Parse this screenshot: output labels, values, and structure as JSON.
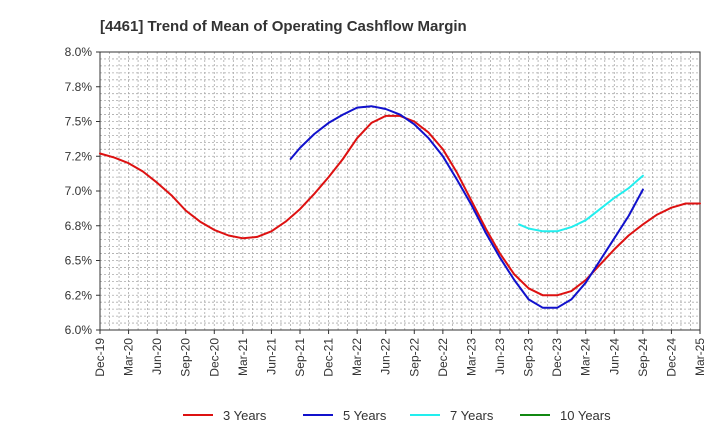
{
  "chart_data": {
    "type": "line",
    "title": "[4461]  Trend of Mean of Operating Cashflow Margin",
    "xlabel": "",
    "ylabel": "",
    "ylim": [
      6.0,
      8.0
    ],
    "yticks": [
      "8.0%",
      "7.8%",
      "7.5%",
      "7.2%",
      "7.0%",
      "6.8%",
      "6.5%",
      "6.2%",
      "6.0%"
    ],
    "ytick_values": [
      8.0,
      7.75,
      7.5,
      7.25,
      7.0,
      6.75,
      6.5,
      6.25,
      6.0
    ],
    "x_range_quarters": [
      0,
      21
    ],
    "xticks": [
      "Dec-19",
      "Mar-20",
      "Jun-20",
      "Sep-20",
      "Dec-20",
      "Mar-21",
      "Jun-21",
      "Sep-21",
      "Dec-21",
      "Mar-22",
      "Jun-22",
      "Sep-22",
      "Dec-22",
      "Mar-23",
      "Jun-23",
      "Sep-23",
      "Dec-23",
      "Mar-24",
      "Jun-24",
      "Sep-24",
      "Dec-24",
      "Mar-25"
    ],
    "grid": true,
    "legend_position": "bottom",
    "series": [
      {
        "name": "3 Years",
        "color": "#dd1111",
        "points": [
          [
            0,
            7.27
          ],
          [
            0.5,
            7.24
          ],
          [
            1,
            7.2
          ],
          [
            1.5,
            7.14
          ],
          [
            2,
            7.06
          ],
          [
            2.5,
            6.97
          ],
          [
            3,
            6.86
          ],
          [
            3.5,
            6.78
          ],
          [
            4,
            6.72
          ],
          [
            4.5,
            6.68
          ],
          [
            5,
            6.66
          ],
          [
            5.5,
            6.67
          ],
          [
            6,
            6.71
          ],
          [
            6.5,
            6.78
          ],
          [
            7,
            6.87
          ],
          [
            7.5,
            6.98
          ],
          [
            8,
            7.1
          ],
          [
            8.5,
            7.23
          ],
          [
            9,
            7.38
          ],
          [
            9.5,
            7.49
          ],
          [
            10,
            7.54
          ],
          [
            10.5,
            7.54
          ],
          [
            11,
            7.5
          ],
          [
            11.5,
            7.42
          ],
          [
            12,
            7.3
          ],
          [
            12.5,
            7.13
          ],
          [
            13,
            6.93
          ],
          [
            13.5,
            6.73
          ],
          [
            14,
            6.55
          ],
          [
            14.5,
            6.4
          ],
          [
            15,
            6.3
          ],
          [
            15.5,
            6.25
          ],
          [
            16,
            6.25
          ],
          [
            16.5,
            6.28
          ],
          [
            17,
            6.36
          ],
          [
            17.5,
            6.47
          ],
          [
            18,
            6.58
          ],
          [
            18.5,
            6.68
          ],
          [
            19,
            6.76
          ],
          [
            19.5,
            6.83
          ],
          [
            20,
            6.88
          ],
          [
            20.5,
            6.91
          ],
          [
            21,
            6.91
          ]
        ]
      },
      {
        "name": "5 Years",
        "color": "#1111cc",
        "points": [
          [
            6.67,
            7.23
          ],
          [
            7,
            7.31
          ],
          [
            7.5,
            7.41
          ],
          [
            8,
            7.49
          ],
          [
            8.5,
            7.55
          ],
          [
            9,
            7.6
          ],
          [
            9.5,
            7.61
          ],
          [
            10,
            7.59
          ],
          [
            10.5,
            7.55
          ],
          [
            11,
            7.48
          ],
          [
            11.5,
            7.38
          ],
          [
            12,
            7.25
          ],
          [
            12.5,
            7.08
          ],
          [
            13,
            6.9
          ],
          [
            13.5,
            6.7
          ],
          [
            14,
            6.52
          ],
          [
            14.5,
            6.36
          ],
          [
            15,
            6.22
          ],
          [
            15.5,
            6.16
          ],
          [
            16,
            6.16
          ],
          [
            16.5,
            6.22
          ],
          [
            17,
            6.34
          ],
          [
            17.5,
            6.5
          ],
          [
            18,
            6.66
          ],
          [
            18.5,
            6.82
          ],
          [
            19,
            7.01
          ]
        ]
      },
      {
        "name": "7 Years",
        "color": "#22eeee",
        "points": [
          [
            14.67,
            6.76
          ],
          [
            15,
            6.73
          ],
          [
            15.5,
            6.71
          ],
          [
            16,
            6.71
          ],
          [
            16.5,
            6.74
          ],
          [
            17,
            6.79
          ],
          [
            17.5,
            6.87
          ],
          [
            18,
            6.95
          ],
          [
            18.5,
            7.02
          ],
          [
            19,
            7.11
          ]
        ]
      },
      {
        "name": "10 Years",
        "color": "#118811",
        "points": []
      }
    ]
  }
}
